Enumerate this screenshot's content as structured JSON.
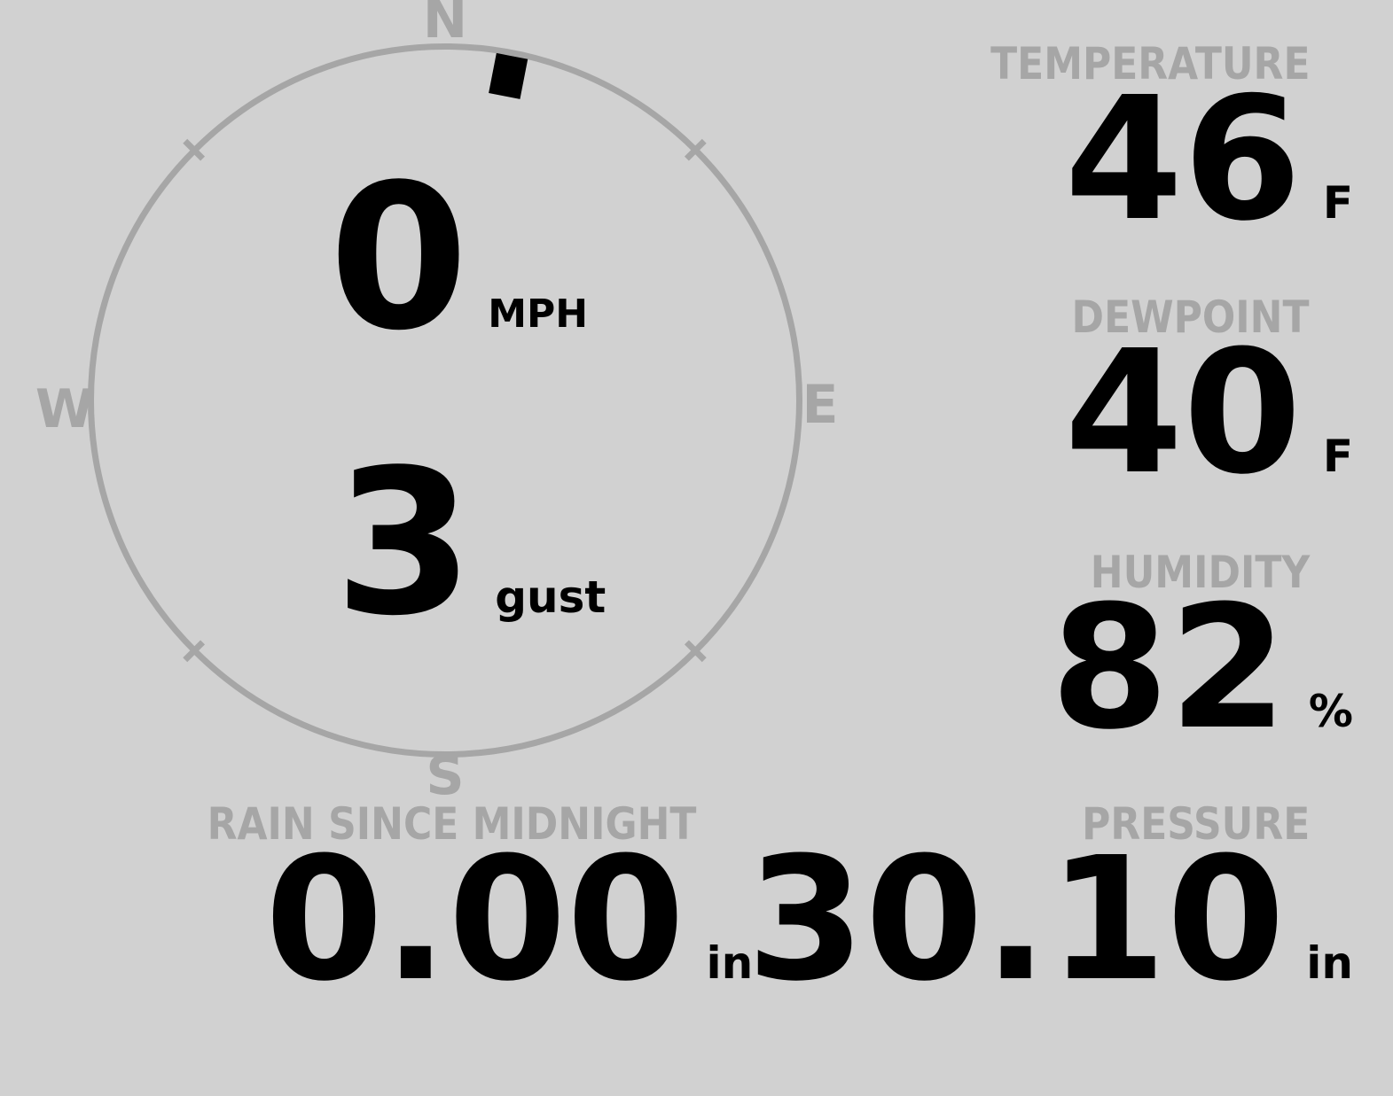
{
  "colors": {
    "background": "#d1d1d1",
    "muted_gray": "#a6a6a6",
    "value_black": "#000000"
  },
  "compass": {
    "cardinals": {
      "north": "N",
      "east": "E",
      "south": "S",
      "west": "W"
    },
    "wind": {
      "direction_deg": 11,
      "speed": {
        "value": "0",
        "unit": "MPH"
      },
      "gust": {
        "value": "3",
        "unit": "gust"
      }
    }
  },
  "metrics": {
    "temperature": {
      "label": "TEMPERATURE",
      "value": "46",
      "unit": "F"
    },
    "dewpoint": {
      "label": "DEWPOINT",
      "value": "40",
      "unit": "F"
    },
    "humidity": {
      "label": "HUMIDITY",
      "value": "82",
      "unit": "%"
    },
    "rain": {
      "label": "RAIN SINCE MIDNIGHT",
      "value": "0.00",
      "unit": "in"
    },
    "pressure": {
      "label": "PRESSURE",
      "value": "30.10",
      "unit": "in"
    }
  }
}
